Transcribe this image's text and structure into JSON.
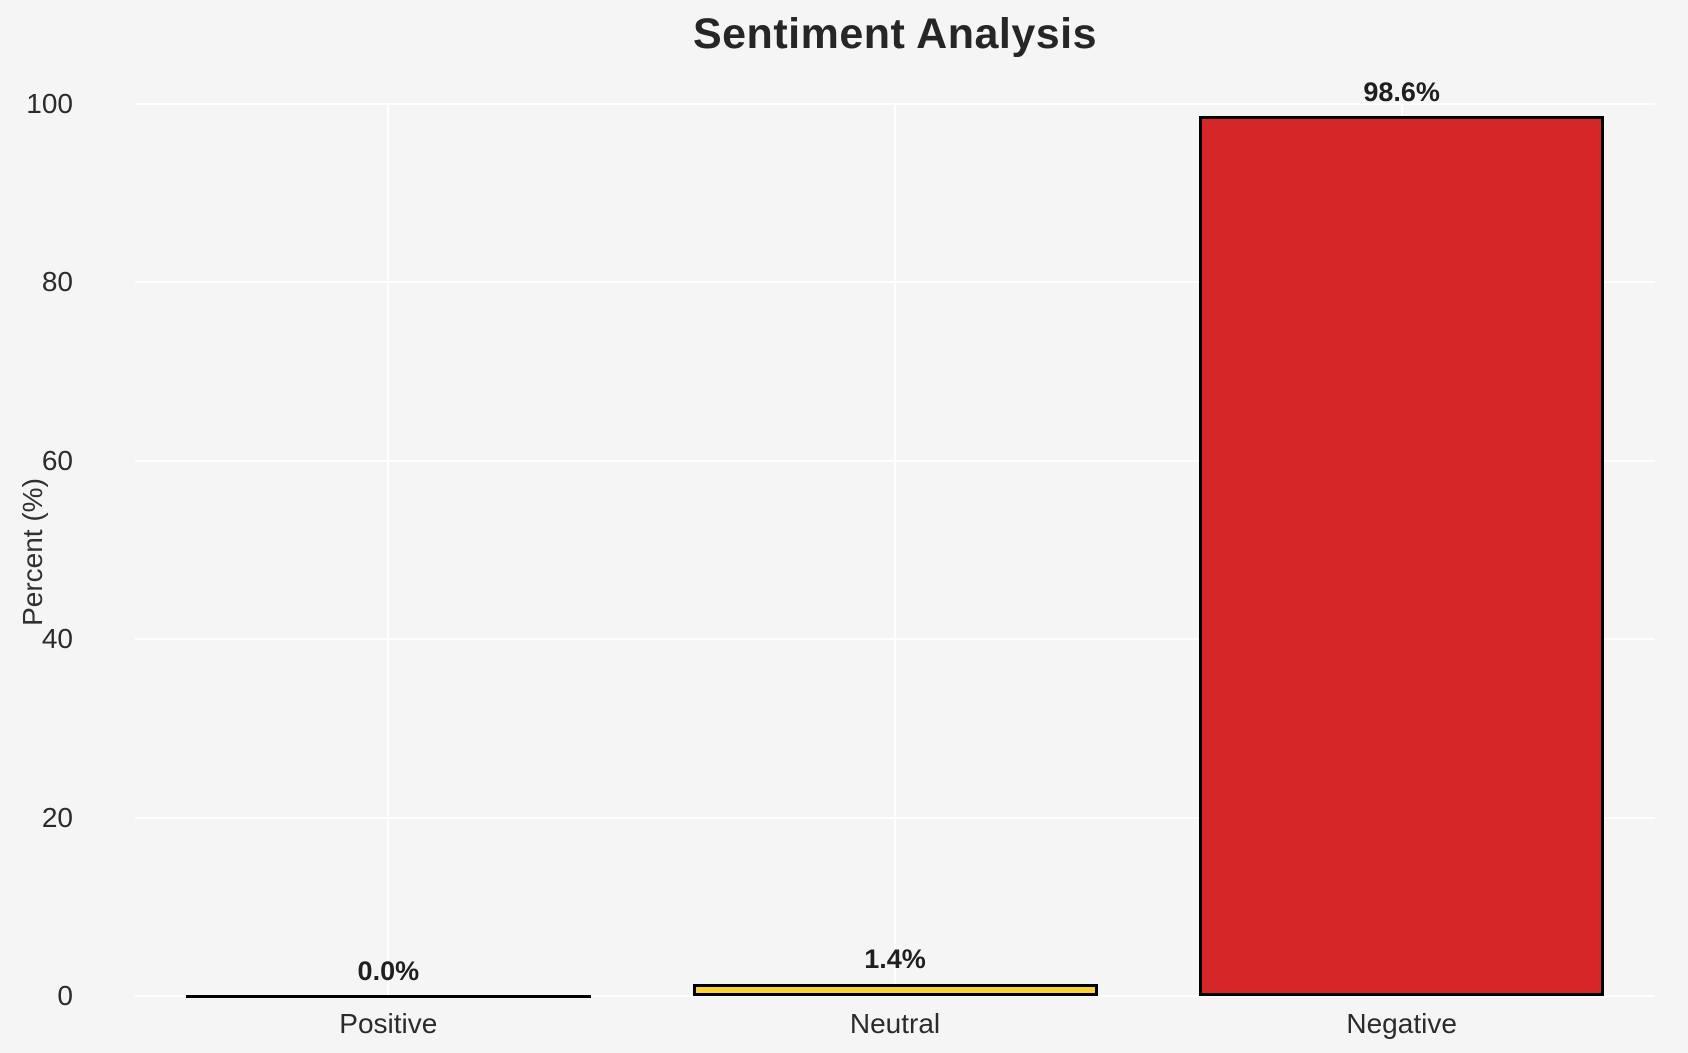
{
  "chart_data": {
    "type": "bar",
    "title": "Sentiment Analysis",
    "categories": [
      "Positive",
      "Neutral",
      "Negative"
    ],
    "values": [
      0.0,
      1.4,
      98.6
    ],
    "value_labels": [
      "0.0%",
      "1.4%",
      "98.6%"
    ],
    "bar_colors": [
      "none",
      "#FBD335",
      "#D62728"
    ],
    "bar_edge_color": "#000000",
    "xlabel": "",
    "ylabel": "Percent (%)",
    "ylim": [
      0,
      100
    ],
    "yticks": [
      0,
      20,
      40,
      60,
      80,
      100
    ],
    "grid": true,
    "legend": "none",
    "background_color": "#F5F5F6",
    "gridline_color": "#FFFFFF",
    "text_color": "#262626"
  }
}
